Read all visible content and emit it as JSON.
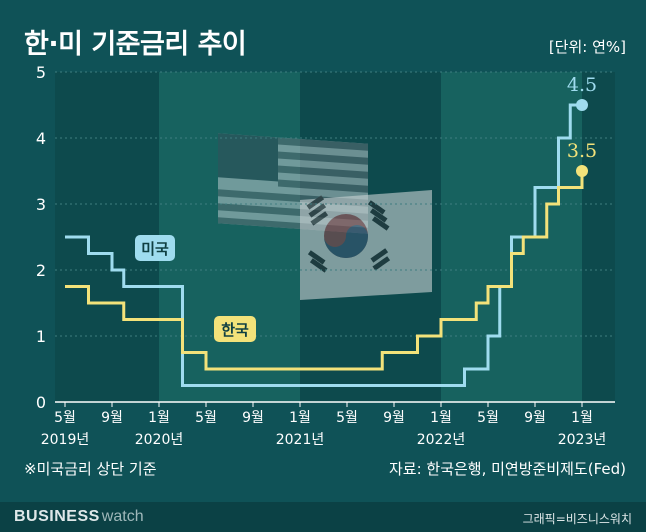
{
  "header": {
    "title": "한·미 기준금리 추이",
    "unit": "[단위: 연%]"
  },
  "footer": {
    "note": "※미국금리 상단 기준",
    "source": "자료: 한국은행, 미연방준비제도(Fed)",
    "brand_bold": "BUSINESS",
    "brand_light": "watch",
    "credit": "그래픽=비즈니스워치"
  },
  "colors": {
    "background": "#0f5257",
    "us_line": "#9fdcef",
    "kr_line": "#f3e27a",
    "panel": "#17625f",
    "panel_alt": "#0d4a4d",
    "axis_text": "#ffffff"
  },
  "chart_data": {
    "type": "line",
    "step": true,
    "ylim": [
      0,
      5
    ],
    "yticks": [
      0,
      1,
      2,
      3,
      4,
      5
    ],
    "x_start": "2019-05",
    "x_end": "2023-01",
    "xticks": [
      {
        "month": "5월",
        "year": "2019년",
        "t": "2019-05"
      },
      {
        "month": "9월",
        "year": "",
        "t": "2019-09"
      },
      {
        "month": "1월",
        "year": "2020년",
        "t": "2020-01"
      },
      {
        "month": "5월",
        "year": "",
        "t": "2020-05"
      },
      {
        "month": "9월",
        "year": "",
        "t": "2020-09"
      },
      {
        "month": "1월",
        "year": "2021년",
        "t": "2021-01"
      },
      {
        "month": "5월",
        "year": "",
        "t": "2021-05"
      },
      {
        "month": "9월",
        "year": "",
        "t": "2021-09"
      },
      {
        "month": "1월",
        "year": "2022년",
        "t": "2022-01"
      },
      {
        "month": "5월",
        "year": "",
        "t": "2022-05"
      },
      {
        "month": "9월",
        "year": "",
        "t": "2022-09"
      },
      {
        "month": "1월",
        "year": "2023년",
        "t": "2023-01"
      }
    ],
    "series": [
      {
        "name": "미국",
        "color": "#9fdcef",
        "end_label": "4.5",
        "steps": [
          [
            "2019-05",
            2.5
          ],
          [
            "2019-07",
            2.25
          ],
          [
            "2019-09",
            2.0
          ],
          [
            "2019-10",
            1.75
          ],
          [
            "2020-03",
            0.25
          ],
          [
            "2022-03",
            0.5
          ],
          [
            "2022-05",
            1.0
          ],
          [
            "2022-06",
            1.75
          ],
          [
            "2022-07",
            2.5
          ],
          [
            "2022-09",
            3.25
          ],
          [
            "2022-11",
            4.0
          ],
          [
            "2022-12",
            4.5
          ],
          [
            "2023-01",
            4.5
          ]
        ]
      },
      {
        "name": "한국",
        "color": "#f3e27a",
        "end_label": "3.5",
        "steps": [
          [
            "2019-05",
            1.75
          ],
          [
            "2019-07",
            1.5
          ],
          [
            "2019-10",
            1.25
          ],
          [
            "2020-03",
            0.75
          ],
          [
            "2020-05",
            0.5
          ],
          [
            "2021-08",
            0.75
          ],
          [
            "2021-11",
            1.0
          ],
          [
            "2022-01",
            1.25
          ],
          [
            "2022-04",
            1.5
          ],
          [
            "2022-05",
            1.75
          ],
          [
            "2022-07",
            2.25
          ],
          [
            "2022-08",
            2.5
          ],
          [
            "2022-10",
            3.0
          ],
          [
            "2022-11",
            3.25
          ],
          [
            "2023-01",
            3.5
          ]
        ]
      }
    ]
  }
}
